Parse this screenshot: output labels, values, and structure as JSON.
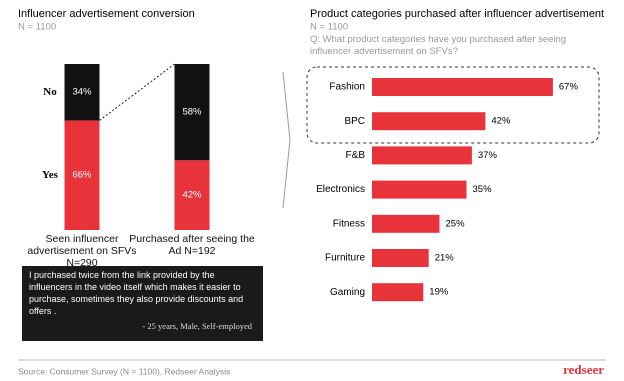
{
  "chart_data": [
    {
      "type": "stacked-bar",
      "title": "Influencer advertisement conversion",
      "subtitle": "N = 1100",
      "categories": [
        "Seen influencer advertisement on SFVs N=290",
        "Purchased after seeing the Ad N=192"
      ],
      "series": [
        {
          "name": "No",
          "color": "#111111",
          "values": [
            34,
            58
          ],
          "value_labels": [
            "34%",
            "58%"
          ]
        },
        {
          "name": "Yes",
          "color": "#e8333a",
          "values": [
            66,
            42
          ],
          "value_labels": [
            "66%",
            "42%"
          ]
        }
      ],
      "ylim": [
        0,
        100
      ]
    },
    {
      "type": "barh",
      "title": "Product categories purchased after influencer advertisement",
      "subtitle": "N = 1100",
      "question": "Q: What product categories have you purchased after seeing influencer advertisement on SFVs?",
      "categories": [
        "Fashion",
        "BPC",
        "F&B",
        "Electronics",
        "Fitness",
        "Furniture",
        "Gaming"
      ],
      "values": [
        67,
        42,
        37,
        35,
        25,
        21,
        19
      ],
      "value_labels": [
        "67%",
        "42%",
        "37%",
        "35%",
        "25%",
        "21%",
        "19%"
      ],
      "color": "#e8333a",
      "xlim": [
        0,
        100
      ]
    }
  ],
  "quote": {
    "text": "I purchased twice from the link provided  by the influencers in the video itself which makes it easier to purchase, sometimes they also provide discounts and offers .",
    "attribution": "- 25 years, Male, Self-employed"
  },
  "footer": {
    "source": "Source: Consumer Survey (N = 1100), Redseer Analysis",
    "logo": "redseer"
  }
}
